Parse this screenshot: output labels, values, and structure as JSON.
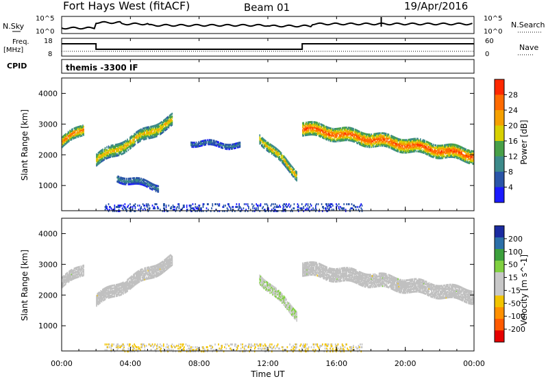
{
  "header": {
    "title": "Fort Hays West (fitACF)",
    "beam": "Beam 01",
    "date": "19/Apr/2016"
  },
  "top_panel": {
    "left_label": "N.Sky",
    "left_ticks": [
      "10^5",
      "10^0"
    ],
    "right_ticks": [
      "10^5",
      "10^0"
    ],
    "right_label": "N.Search",
    "freq_label": "Freq.",
    "freq_unit": "[MHz]",
    "freq_ticks": [
      "18",
      "8"
    ],
    "nave_ticks": [
      "60",
      "0"
    ],
    "nave_label": "Nave",
    "cpid_label": "CPID",
    "cpid_value": "themis -3300 IF"
  },
  "colors": {
    "power_scale": [
      "#1a1aff",
      "#2a55a8",
      "#3c8a8a",
      "#48a048",
      "#d8d000",
      "#f5a000",
      "#ff6a00",
      "#ff2800"
    ],
    "velocity_scale": [
      "#e60000",
      "#ff5a00",
      "#ff9000",
      "#f2c400",
      "#c8c8c8",
      "#c8c8c8",
      "#80d040",
      "#3ca03c",
      "#2b6fa8",
      "#1a2aa0"
    ],
    "ground_scatter": "#c0c0c0"
  },
  "time_axis": {
    "label": "Time UT",
    "ticks": [
      "00:00",
      "04:00",
      "08:00",
      "12:00",
      "16:00",
      "20:00",
      "00:00"
    ]
  },
  "chart_data": [
    {
      "type": "heatmap",
      "title": "Power",
      "xlabel": "Time UT",
      "ylabel": "Slant Range [km]",
      "x_unit": "hours UT",
      "xlim": [
        0,
        24
      ],
      "ylim": [
        180,
        4500
      ],
      "yticks": [
        "1000",
        "2000",
        "3000",
        "4000"
      ],
      "colorbar": {
        "label": "Power [dB]",
        "ticks": [
          "4",
          "8",
          "12",
          "16",
          "20",
          "24",
          "28"
        ],
        "range": [
          0,
          32
        ]
      },
      "regions": [
        {
          "t": [
            0.0,
            1.3
          ],
          "range_center": [
            2450,
            2900
          ],
          "width": 330,
          "power": 22
        },
        {
          "t": [
            2.0,
            6.4
          ],
          "range_center": [
            1880,
            3150
          ],
          "width": 380,
          "power": 18
        },
        {
          "t": [
            3.2,
            5.6
          ],
          "range_center": [
            1300,
            1000
          ],
          "width": 220,
          "power": 8
        },
        {
          "t": [
            7.5,
            10.4
          ],
          "range_center": [
            2430,
            2330
          ],
          "width": 150,
          "power": 8
        },
        {
          "t": [
            11.5,
            13.7
          ],
          "range_center": [
            2600,
            1380
          ],
          "width": 300,
          "power": 18
        },
        {
          "t": [
            14.0,
            24.0
          ],
          "range_center": [
            2900,
            2000
          ],
          "width": 420,
          "power": 24
        }
      ],
      "near_range_band": {
        "t": [
          2.5,
          17.5
        ],
        "range": [
          200,
          450
        ],
        "power": 8
      }
    },
    {
      "type": "heatmap",
      "title": "Velocity",
      "xlabel": "Time UT",
      "ylabel": "Slant Range [km]",
      "x_unit": "hours UT",
      "xlim": [
        0,
        24
      ],
      "ylim": [
        180,
        4500
      ],
      "yticks": [
        "1000",
        "2000",
        "3000",
        "4000"
      ],
      "colorbar": {
        "label": "Velocity [m s^-1]",
        "ticks": [
          "-200",
          "-100",
          "-50",
          "-15",
          "15",
          "50",
          "100",
          "200"
        ],
        "range": [
          -250,
          250
        ]
      },
      "regions": [
        {
          "t": [
            0.0,
            1.3
          ],
          "range_center": [
            2450,
            2900
          ],
          "width": 330,
          "velocity": 0
        },
        {
          "t": [
            2.0,
            6.4
          ],
          "range_center": [
            1880,
            3150
          ],
          "width": 380,
          "velocity": 0
        },
        {
          "t": [
            11.5,
            13.7
          ],
          "range_center": [
            2600,
            1380
          ],
          "width": 300,
          "velocity": 40
        },
        {
          "t": [
            14.0,
            24.0
          ],
          "range_center": [
            2900,
            2000
          ],
          "width": 420,
          "velocity": 0
        }
      ],
      "near_range_band": {
        "t": [
          2.5,
          17.5
        ],
        "range": [
          200,
          450
        ],
        "velocity": -40
      }
    }
  ]
}
